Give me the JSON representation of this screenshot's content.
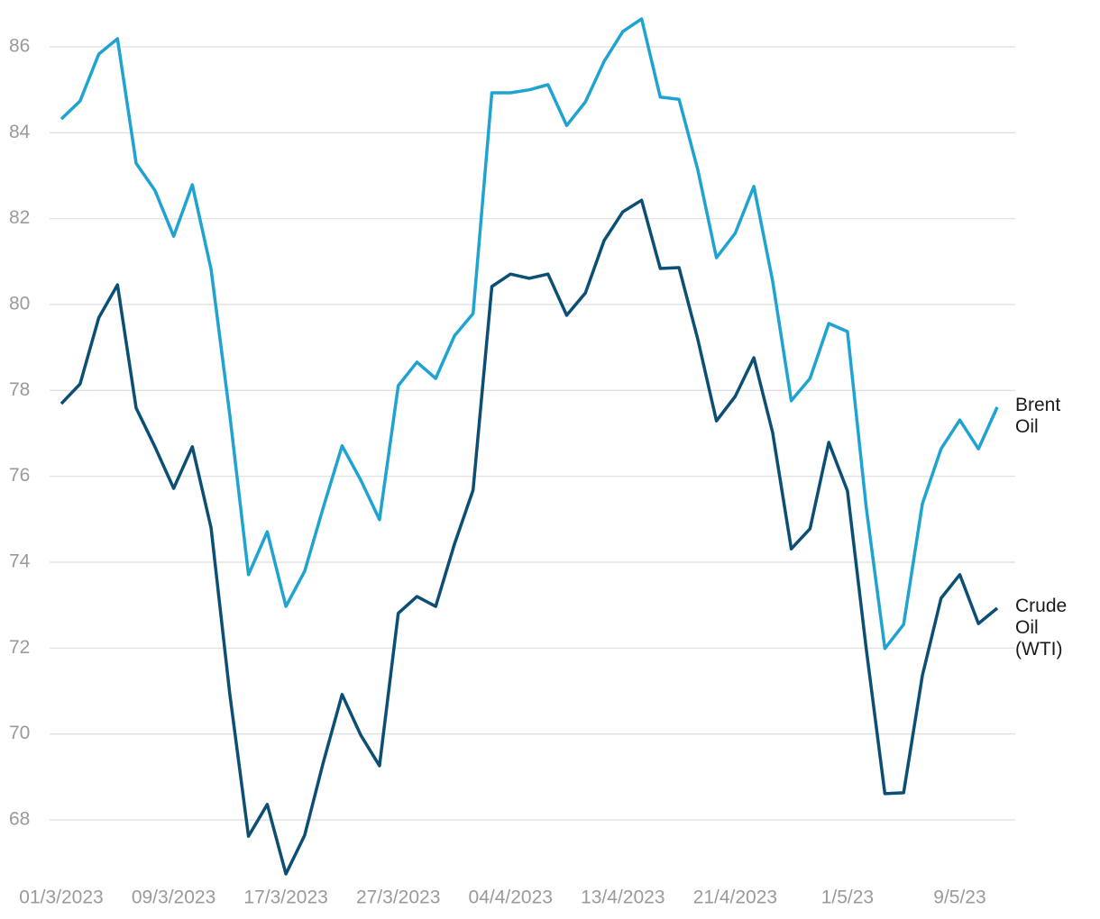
{
  "chart_data": {
    "type": "line",
    "categories": [
      "01/3/2023",
      null,
      null,
      null,
      null,
      null,
      "09/3/2023",
      null,
      null,
      null,
      null,
      null,
      "17/3/2023",
      null,
      null,
      null,
      null,
      null,
      "27/3/2023",
      null,
      null,
      null,
      null,
      null,
      "04/4/2023",
      null,
      null,
      null,
      null,
      null,
      "13/4/2023",
      null,
      null,
      null,
      null,
      null,
      "21/4/2023",
      null,
      null,
      null,
      null,
      null,
      "1/5/23",
      null,
      null,
      null,
      null,
      null,
      "9/5/23",
      null,
      null
    ],
    "series": [
      {
        "name": "Brent Oil",
        "color": "#1fa3d1",
        "values": [
          84.32,
          84.74,
          85.83,
          86.19,
          83.29,
          82.66,
          81.59,
          82.79,
          80.82,
          77.44,
          73.71,
          74.71,
          72.97,
          73.79,
          75.28,
          76.71,
          75.91,
          74.99,
          78.11,
          78.66,
          78.28,
          79.27,
          79.79,
          84.93,
          84.93,
          85.0,
          85.12,
          84.17,
          84.72,
          85.66,
          86.36,
          86.65,
          84.83,
          84.78,
          83.15,
          81.09,
          81.66,
          82.75,
          80.55,
          77.76,
          78.28,
          79.56,
          79.37,
          75.28,
          71.99,
          72.55,
          75.36,
          76.64,
          77.31,
          76.64,
          77.61
        ]
      },
      {
        "name": "Crude Oil (WTI)",
        "color": "#0c4f74",
        "values": [
          77.69,
          78.15,
          79.69,
          80.46,
          77.59,
          76.69,
          75.72,
          76.69,
          74.8,
          70.94,
          67.62,
          68.36,
          66.74,
          67.64,
          69.34,
          70.92,
          69.97,
          69.26,
          72.81,
          73.2,
          72.97,
          74.42,
          75.68,
          80.42,
          80.71,
          80.61,
          80.71,
          79.75,
          80.27,
          81.49,
          82.16,
          82.43,
          80.84,
          80.86,
          79.2,
          77.29,
          77.86,
          78.76,
          77.02,
          74.31,
          74.78,
          76.79,
          75.66,
          71.99,
          68.61,
          68.63,
          71.36,
          73.16,
          73.71,
          72.57,
          72.93
        ]
      }
    ],
    "ylim": [
      66.6,
      86.8
    ],
    "yticks": [
      68,
      70,
      72,
      74,
      76,
      78,
      80,
      82,
      84,
      86
    ],
    "grid": true
  }
}
